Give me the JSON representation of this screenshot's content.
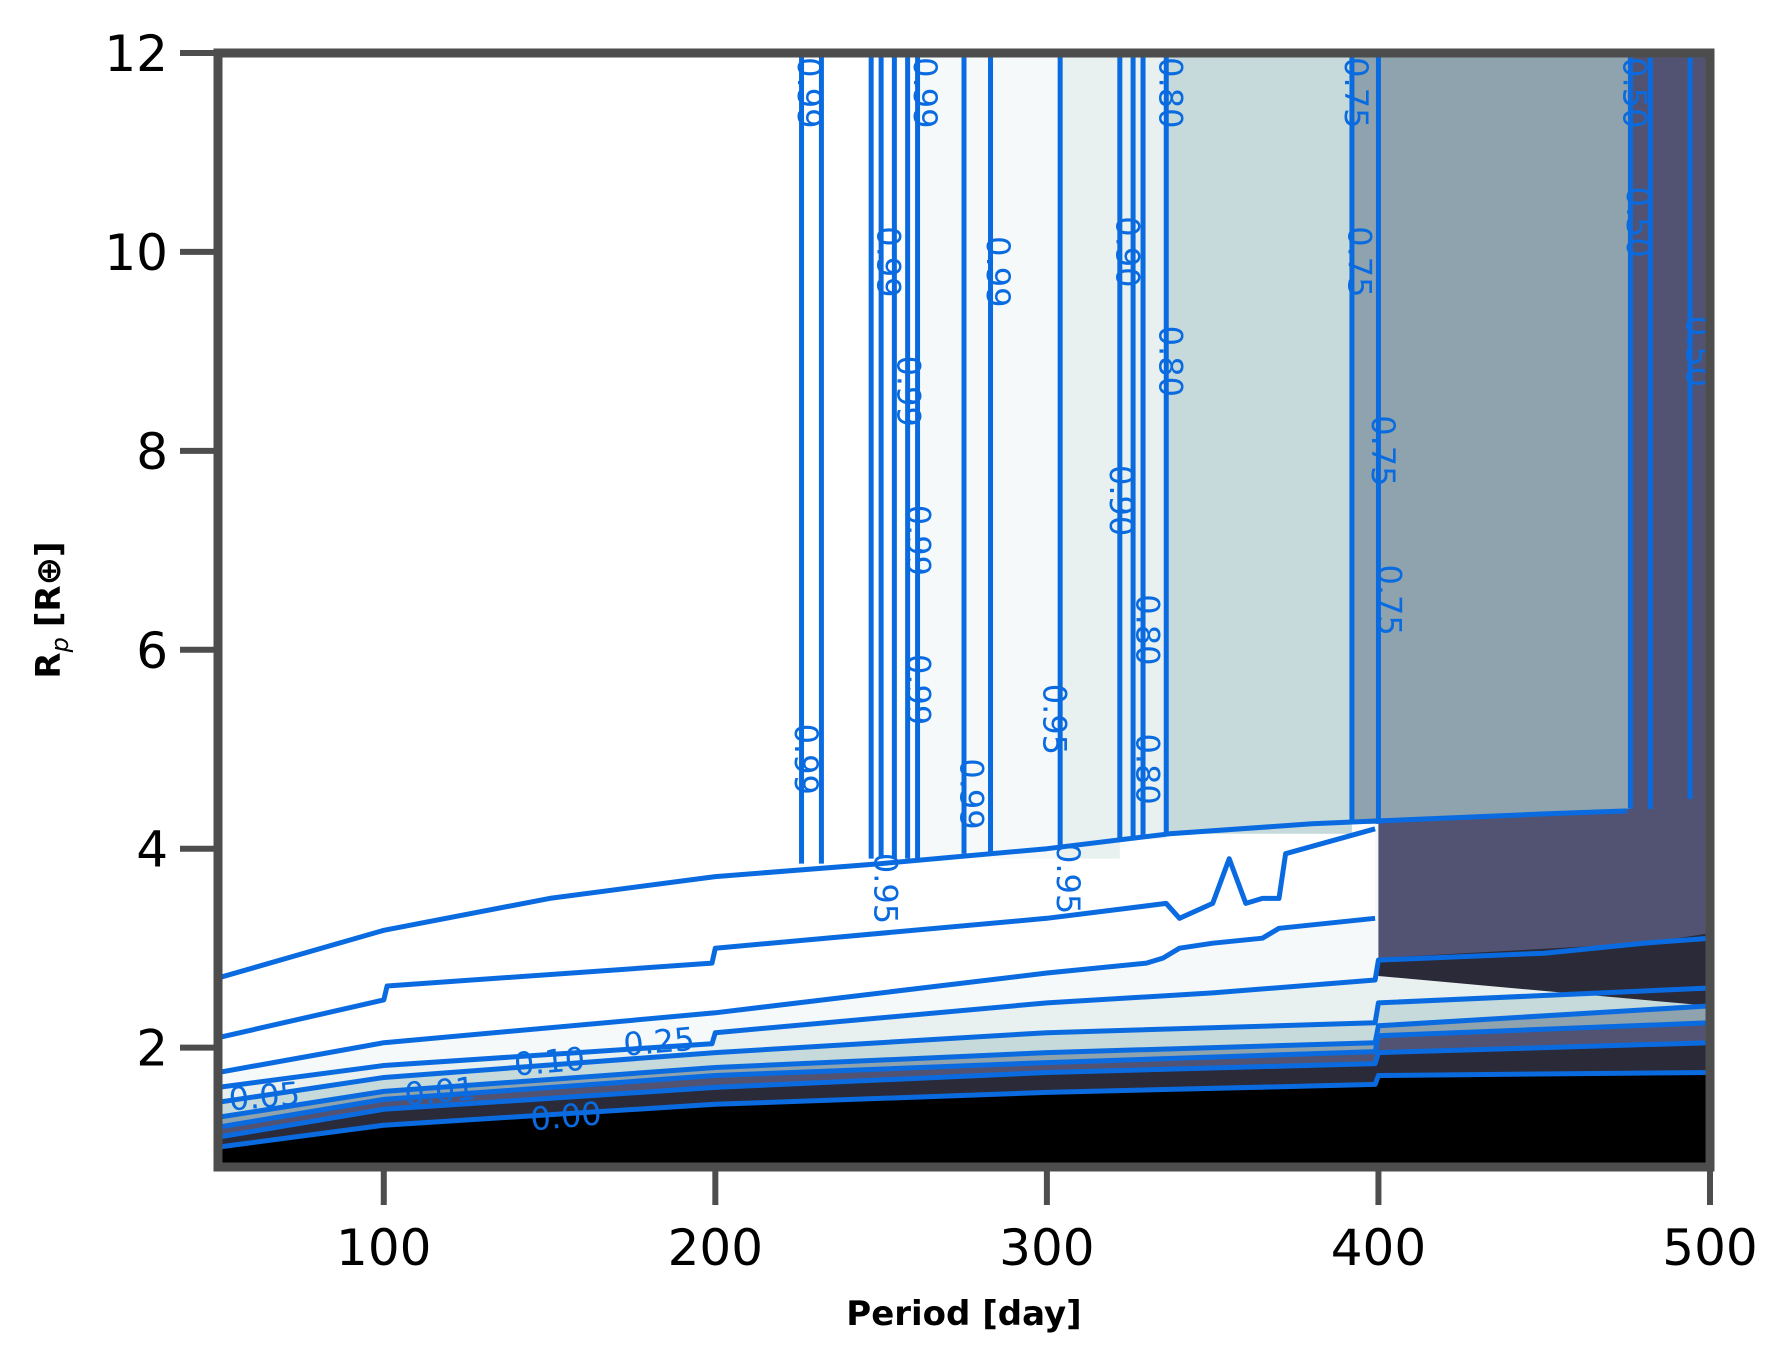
{
  "chart_data": {
    "type": "contour",
    "xlabel": "Period [day]",
    "ylabel_main": "R",
    "ylabel_sub": "p",
    "ylabel_unit": "[R⊕]",
    "xlim": [
      50,
      500
    ],
    "ylim": [
      0.8,
      12
    ],
    "xticks": [
      100,
      200,
      300,
      400,
      500
    ],
    "yticks": [
      2,
      4,
      6,
      8,
      10,
      12
    ],
    "grid": false,
    "colors": {
      "contour_line": "#0a6be0",
      "axes_spine": "#4d4d4d",
      "level_fill": [
        "#000000",
        "#2a2a38",
        "#525373",
        "#8ea3ad",
        "#c6dadb",
        "#e8f0f0",
        "#f5f9fa",
        "#ffffff"
      ]
    },
    "levels": [
      0.0,
      0.01,
      0.05,
      0.1,
      0.25,
      0.5,
      0.75,
      0.8,
      0.9,
      0.95,
      0.99
    ],
    "level_boundaries": [
      {
        "level": 0.0,
        "x": [
          50,
          100,
          200,
          300,
          399,
          400,
          500
        ],
        "y": [
          1.0,
          1.22,
          1.43,
          1.55,
          1.63,
          1.72,
          1.75
        ]
      },
      {
        "level": 0.01,
        "x": [
          50,
          100,
          200,
          300,
          399,
          400,
          500
        ],
        "y": [
          1.1,
          1.38,
          1.6,
          1.75,
          1.84,
          1.95,
          2.05
        ]
      },
      {
        "level": 0.05,
        "x": [
          50,
          100,
          200,
          300,
          399,
          400,
          500
        ],
        "y": [
          1.2,
          1.48,
          1.72,
          1.85,
          1.96,
          2.12,
          2.25
        ]
      },
      {
        "level": 0.1,
        "x": [
          50,
          100,
          200,
          300,
          399,
          400,
          500
        ],
        "y": [
          1.3,
          1.56,
          1.8,
          1.95,
          2.05,
          2.22,
          2.42
        ]
      },
      {
        "level": 0.25,
        "x": [
          50,
          100,
          200,
          300,
          399,
          400,
          500
        ],
        "y": [
          1.45,
          1.7,
          1.95,
          2.15,
          2.25,
          2.45,
          2.6
        ]
      },
      {
        "level": 0.5,
        "x": [
          50,
          100,
          199,
          200,
          300,
          350,
          399,
          400,
          450,
          480,
          500
        ],
        "y": [
          1.6,
          1.82,
          2.04,
          2.15,
          2.45,
          2.55,
          2.68,
          2.88,
          2.95,
          3.05,
          3.1
        ]
      },
      {
        "level": 0.75,
        "x": [
          50,
          100,
          200,
          300,
          330,
          335,
          340,
          350,
          365,
          370,
          399
        ],
        "y": [
          1.75,
          2.05,
          2.35,
          2.75,
          2.85,
          2.9,
          3.0,
          3.05,
          3.1,
          3.2,
          3.3
        ]
      },
      {
        "level": 0.8,
        "x": [
          50,
          100,
          101,
          199,
          200,
          300,
          336,
          340,
          350,
          355,
          360,
          365,
          370,
          372,
          399
        ],
        "y": [
          2.1,
          2.48,
          2.62,
          2.85,
          3.0,
          3.3,
          3.45,
          3.3,
          3.45,
          3.9,
          3.45,
          3.5,
          3.5,
          3.95,
          4.2
        ]
      },
      {
        "level": 0.9,
        "x": [
          50,
          100,
          150,
          200,
          250,
          300,
          337,
          380,
          400,
          450,
          475
        ],
        "y": [
          2.7,
          3.18,
          3.5,
          3.72,
          3.85,
          4.0,
          4.15,
          4.25,
          4.28,
          4.35,
          4.38
        ]
      }
    ],
    "vertical_contours": [
      {
        "x": 226,
        "y_top": 12,
        "y_bottom": 3.85
      },
      {
        "x": 232,
        "y_top": 12,
        "y_bottom": 3.85
      },
      {
        "x": 247,
        "y_top": 12,
        "y_bottom": 3.9
      },
      {
        "x": 250,
        "y_top": 12,
        "y_bottom": 3.9
      },
      {
        "x": 254,
        "y_top": 12,
        "y_bottom": 3.9
      },
      {
        "x": 258,
        "y_top": 12,
        "y_bottom": 3.9
      },
      {
        "x": 261,
        "y_top": 12,
        "y_bottom": 3.9
      },
      {
        "x": 275,
        "y_top": 12,
        "y_bottom": 3.95
      },
      {
        "x": 283,
        "y_top": 12,
        "y_bottom": 3.95
      },
      {
        "x": 304,
        "y_top": 12,
        "y_bottom": 4.0
      },
      {
        "x": 322,
        "y_top": 12,
        "y_bottom": 4.1
      },
      {
        "x": 326,
        "y_top": 12,
        "y_bottom": 4.1
      },
      {
        "x": 329,
        "y_top": 12,
        "y_bottom": 4.1
      },
      {
        "x": 336,
        "y_top": 12,
        "y_bottom": 4.15
      },
      {
        "x": 392,
        "y_top": 12,
        "y_bottom": 4.25
      },
      {
        "x": 400,
        "y_top": 12,
        "y_bottom": 4.25
      },
      {
        "x": 476,
        "y_top": 12,
        "y_bottom": 4.4
      },
      {
        "x": 482,
        "y_top": 12,
        "y_bottom": 4.4
      },
      {
        "x": 494,
        "y_top": 12,
        "y_bottom": 4.5
      }
    ],
    "upper_region_fills": [
      {
        "x_from": 226,
        "x_to": 262,
        "color": "#ffffff"
      },
      {
        "x_from": 262,
        "x_to": 283,
        "color": "#f5f9fa"
      },
      {
        "x_from": 283,
        "x_to": 322,
        "color": "#f5f9fa"
      },
      {
        "x_from": 304,
        "x_to": 322,
        "color": "#e8f0f0"
      },
      {
        "x_from": 322,
        "x_to": 336,
        "color": "#e8f0f0"
      },
      {
        "x_from": 336,
        "x_to": 392,
        "color": "#c6dadb"
      },
      {
        "x_from": 392,
        "x_to": 476,
        "color": "#8ea3ad"
      },
      {
        "x_from": 476,
        "x_to": 500,
        "color": "#525373"
      }
    ],
    "contour_labels": [
      {
        "text": "0.00",
        "x": 155,
        "y": 1.3,
        "rotation": -5
      },
      {
        "text": "0.01",
        "x": 117,
        "y": 1.55,
        "rotation": -5
      },
      {
        "text": "0.05",
        "x": 64,
        "y": 1.5,
        "rotation": -5
      },
      {
        "text": "0.10",
        "x": 150,
        "y": 1.85,
        "rotation": -5
      },
      {
        "text": "0.25",
        "x": 183,
        "y": 2.05,
        "rotation": -5
      },
      {
        "text": "0.99",
        "x": 228,
        "y": 11.6,
        "rotation": 90
      },
      {
        "text": "0.99",
        "x": 263,
        "y": 11.6,
        "rotation": 90
      },
      {
        "text": "0.99",
        "x": 285,
        "y": 9.8,
        "rotation": 90
      },
      {
        "text": "0.99",
        "x": 252,
        "y": 9.9,
        "rotation": 90
      },
      {
        "text": "0.99",
        "x": 258,
        "y": 8.6,
        "rotation": 90
      },
      {
        "text": "0.99",
        "x": 261,
        "y": 7.1,
        "rotation": 90
      },
      {
        "text": "0.99",
        "x": 261,
        "y": 5.6,
        "rotation": 90
      },
      {
        "text": "0.99",
        "x": 227,
        "y": 4.9,
        "rotation": 90
      },
      {
        "text": "0.99",
        "x": 277,
        "y": 4.55,
        "rotation": 90
      },
      {
        "text": "0.95",
        "x": 251,
        "y": 3.6,
        "rotation": 90
      },
      {
        "text": "0.95",
        "x": 302,
        "y": 5.3,
        "rotation": 90
      },
      {
        "text": "0.95",
        "x": 306,
        "y": 3.7,
        "rotation": 90
      },
      {
        "text": "0.90",
        "x": 324,
        "y": 10.0,
        "rotation": 90
      },
      {
        "text": "0.90",
        "x": 322,
        "y": 7.5,
        "rotation": 90
      },
      {
        "text": "0.80",
        "x": 337,
        "y": 11.6,
        "rotation": 90
      },
      {
        "text": "0.80",
        "x": 337,
        "y": 8.9,
        "rotation": 90
      },
      {
        "text": "0.80",
        "x": 330,
        "y": 6.2,
        "rotation": 90
      },
      {
        "text": "0.80",
        "x": 330,
        "y": 4.8,
        "rotation": 90
      },
      {
        "text": "0.75",
        "x": 393,
        "y": 11.6,
        "rotation": 90
      },
      {
        "text": "0.75",
        "x": 394,
        "y": 9.9,
        "rotation": 90
      },
      {
        "text": "0.75",
        "x": 401,
        "y": 8.0,
        "rotation": 90
      },
      {
        "text": "0.75",
        "x": 403,
        "y": 6.5,
        "rotation": 90
      },
      {
        "text": "0.50",
        "x": 477,
        "y": 11.6,
        "rotation": 90
      },
      {
        "text": "0.50",
        "x": 478,
        "y": 10.3,
        "rotation": 90
      },
      {
        "text": "0.50",
        "x": 496,
        "y": 9.0,
        "rotation": 90
      }
    ]
  }
}
